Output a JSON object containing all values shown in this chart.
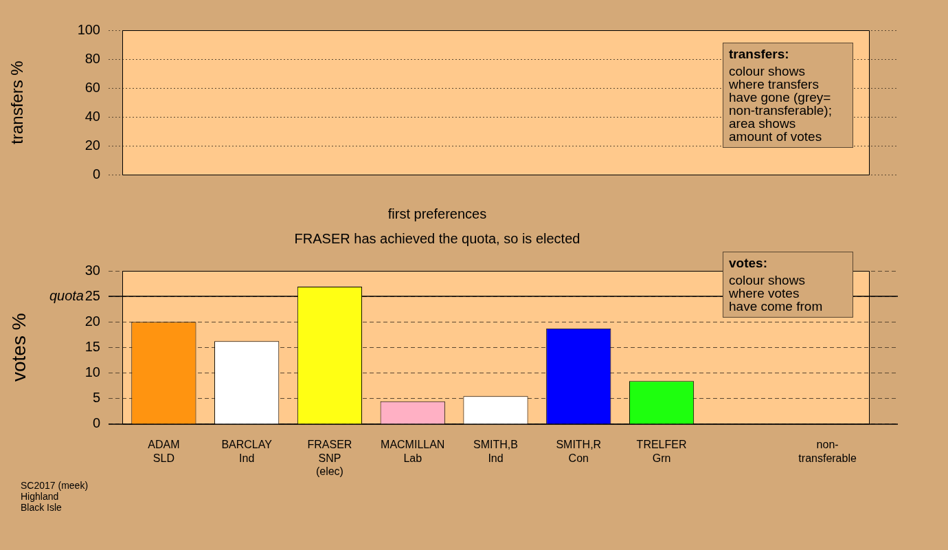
{
  "chart_data": [
    {
      "type": "bar",
      "ylabel": "transfers %",
      "categories": [
        null,
        null,
        null,
        null,
        null,
        null,
        null,
        null,
        null
      ],
      "values": [
        null,
        null,
        null,
        null,
        null,
        null,
        null,
        null,
        null
      ],
      "ylim": [
        0,
        100
      ],
      "yticks": [
        0,
        20,
        40,
        60,
        80,
        100
      ],
      "grid": "y",
      "line_style": "dotted",
      "tick_labels": "y",
      "annotations": [
        "transfers:",
        "colour shows\nwhere transfers\nhave gone (grey=\nnon-transferable);\narea shows\namount of votes"
      ]
    },
    {
      "type": "bar",
      "title": "first preferences",
      "subtitle": "FRASER has achieved the quota, so is elected",
      "ylabel": "votes %",
      "categories": [
        "ADAM\nSLD",
        "BARCLAY\nInd",
        "FRASER\nSNP\n(elec)",
        "MACMILLAN\nLab",
        "SMITH,B\nInd",
        "SMITH,R\nCon",
        "TRELFER\nGrn",
        null,
        "non-\ntransferable"
      ],
      "values": [
        20.0,
        16.2,
        26.9,
        4.4,
        5.4,
        18.7,
        8.4,
        null,
        null
      ],
      "colors": [
        "#ff9410",
        "#ffffff",
        "#ffff14",
        "#ffb0c4",
        "#ffffff",
        "#0000ff",
        "#1eff0e",
        "#ffffff",
        "#ffffff"
      ],
      "ylim": [
        0,
        30
      ],
      "yticks": [
        0,
        5,
        10,
        15,
        20,
        25,
        30
      ],
      "grid": "y",
      "line_style": "dashed",
      "ref_lines": [
        {
          "axis": "y",
          "value": 25,
          "label": "quota"
        }
      ],
      "annotations": [
        "votes:",
        "colour shows\nwhere votes\nhave come from",
        "SC2017 (meek)\nHighland\nBlack Isle"
      ]
    }
  ]
}
